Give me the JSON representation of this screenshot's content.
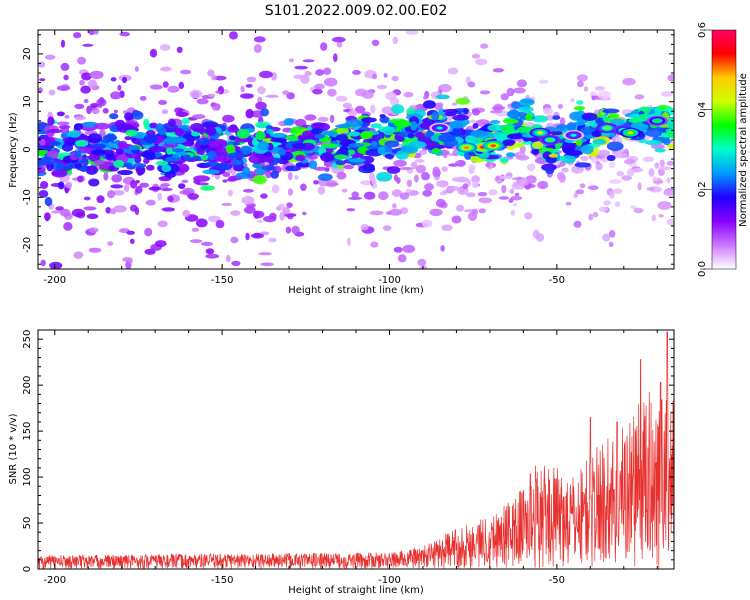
{
  "title": "S101.2022.009.02.00.E02",
  "chart_data": [
    {
      "type": "heatmap",
      "xlabel": "Height of straight line (km)",
      "ylabel": "Frequency (Hz)",
      "xlim": [
        -205,
        -15
      ],
      "ylim": [
        -25,
        25
      ],
      "x_ticks": [
        -200,
        -150,
        -100,
        -50
      ],
      "x_tick_labels": [
        "-200",
        "-150",
        "-100",
        "-50"
      ],
      "y_ticks": [
        -20,
        -10,
        0,
        10,
        20
      ],
      "y_tick_labels": [
        "-20",
        "-10",
        "0",
        "10",
        "20"
      ],
      "colorbar": {
        "label": "Normalized spectral amplitude",
        "range": [
          0,
          0.6
        ],
        "ticks": [
          0.0,
          0.2,
          0.4,
          0.6
        ],
        "tick_labels": [
          "0.0",
          "0.2",
          "0.4",
          "0.6"
        ],
        "colors": [
          "#ffffff",
          "#cc77ff",
          "#8800ff",
          "#2200ff",
          "#0099ff",
          "#00ffcc",
          "#00ff00",
          "#ccff00",
          "#ffcc00",
          "#ff0000",
          "#ff0066"
        ]
      },
      "ridge": [
        {
          "x": -205,
          "y": 0
        },
        {
          "x": -150,
          "y": 0
        },
        {
          "x": -100,
          "y": 2
        },
        {
          "x": -90,
          "y": 4
        },
        {
          "x": -80,
          "y": 4
        },
        {
          "x": -73,
          "y": 0
        },
        {
          "x": -60,
          "y": 5
        },
        {
          "x": -52,
          "y": 0
        },
        {
          "x": -45,
          "y": 3
        },
        {
          "x": -30,
          "y": 5
        },
        {
          "x": -15,
          "y": 5
        }
      ]
    },
    {
      "type": "line",
      "xlabel": "Height of straight line (km)",
      "ylabel": "SNR (10 * v/v)",
      "xlim": [
        -205,
        -15
      ],
      "ylim": [
        0,
        260
      ],
      "x_ticks": [
        -200,
        -150,
        -100,
        -50
      ],
      "x_tick_labels": [
        "-200",
        "-150",
        "-100",
        "-50"
      ],
      "y_ticks": [
        0,
        50,
        100,
        150,
        200,
        250
      ],
      "y_tick_labels": [
        "0",
        "50",
        "100",
        "150",
        "200",
        "250"
      ],
      "color": "#e8312f",
      "envelope": [
        {
          "x": -205,
          "y": 15
        },
        {
          "x": -150,
          "y": 17
        },
        {
          "x": -100,
          "y": 18
        },
        {
          "x": -90,
          "y": 25
        },
        {
          "x": -80,
          "y": 45
        },
        {
          "x": -70,
          "y": 60
        },
        {
          "x": -62,
          "y": 80
        },
        {
          "x": -57,
          "y": 115
        },
        {
          "x": -50,
          "y": 110
        },
        {
          "x": -45,
          "y": 100
        },
        {
          "x": -40,
          "y": 130
        },
        {
          "x": -30,
          "y": 160
        },
        {
          "x": -25,
          "y": 185
        },
        {
          "x": -20,
          "y": 200
        },
        {
          "x": -15,
          "y": 190
        }
      ],
      "peaks": [
        {
          "x": -40,
          "y": 165
        },
        {
          "x": -32,
          "y": 160
        },
        {
          "x": -25,
          "y": 228
        },
        {
          "x": -19,
          "y": 203
        },
        {
          "x": -17,
          "y": 258
        }
      ]
    }
  ]
}
